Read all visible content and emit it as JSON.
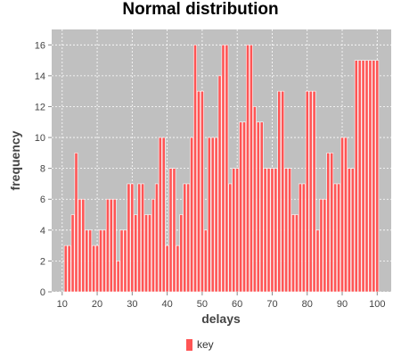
{
  "chart_data": {
    "type": "bar",
    "title": "Normal distribution",
    "xlabel": "delays",
    "ylabel": "frequency",
    "x": [
      11,
      12,
      13,
      14,
      15,
      16,
      17,
      18,
      19,
      20,
      21,
      22,
      23,
      24,
      25,
      26,
      27,
      28,
      29,
      30,
      31,
      32,
      33,
      34,
      35,
      36,
      37,
      38,
      39,
      40,
      41,
      42,
      43,
      44,
      45,
      46,
      47,
      48,
      49,
      50,
      51,
      52,
      53,
      54,
      55,
      56,
      57,
      58,
      59,
      60,
      61,
      62,
      63,
      64,
      65,
      66,
      67,
      68,
      69,
      70,
      71,
      72,
      73,
      74,
      75,
      76,
      77,
      78,
      79,
      80,
      81,
      82,
      83,
      84,
      85,
      86,
      87,
      88,
      89,
      90,
      91,
      92,
      93,
      94,
      95,
      96,
      97,
      98,
      99,
      100
    ],
    "series": [
      {
        "name": "key",
        "values": [
          3,
          3,
          5,
          9,
          6,
          6,
          4,
          4,
          3,
          3,
          4,
          4,
          6,
          6,
          6,
          2,
          4,
          4,
          7,
          7,
          5,
          7,
          7,
          5,
          5,
          6,
          7,
          10,
          10,
          3,
          8,
          8,
          3,
          5,
          7,
          7,
          10,
          16,
          13,
          13,
          4,
          10,
          10,
          10,
          14,
          16,
          16,
          7,
          8,
          8,
          11,
          11,
          16,
          16,
          12,
          11,
          11,
          8,
          8,
          8,
          8,
          13,
          13,
          8,
          8,
          5,
          5,
          7,
          7,
          13,
          13,
          13,
          4,
          6,
          6,
          9,
          9,
          7,
          7,
          10,
          10,
          8,
          8,
          15,
          15,
          15,
          15,
          15,
          15,
          15
        ]
      }
    ],
    "xlim": [
      7,
      104
    ],
    "ylim": [
      0,
      17
    ],
    "xticks": [
      10,
      20,
      30,
      40,
      50,
      60,
      70,
      80,
      90,
      100
    ],
    "yticks": [
      0,
      2,
      4,
      6,
      8,
      10,
      12,
      14,
      16
    ],
    "grid": true,
    "legend_position": "bottom",
    "colors": {
      "bar": "#ff5555",
      "plot_bg": "#c0c0c0",
      "grid": "#ffffff"
    }
  }
}
